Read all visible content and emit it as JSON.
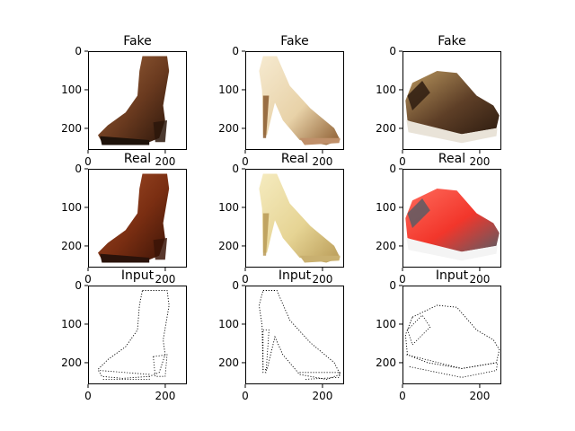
{
  "figure": {
    "rows": [
      {
        "row": "fake",
        "panels": [
          {
            "title": "Fake",
            "subject": "brown-ankle-boot",
            "colors": {
              "main": "#6a3a1f",
              "light": "#a0673d",
              "dark": "#2b160b",
              "sole": "#1e120a"
            }
          },
          {
            "title": "Fake",
            "subject": "cream-high-heel",
            "colors": {
              "main": "#e8d2a8",
              "light": "#f6ead0",
              "dark": "#8a5a2e",
              "sole": "#c0906a"
            }
          },
          {
            "title": "Fake",
            "subject": "brown-sneaker",
            "colors": {
              "main": "#5e3f27",
              "light": "#b8965e",
              "dark": "#2e1c10",
              "sole": "#e9e3d8"
            }
          }
        ]
      },
      {
        "row": "real",
        "panels": [
          {
            "title": "Real",
            "subject": "brown-ankle-boot",
            "colors": {
              "main": "#7a2e12",
              "light": "#a5502a",
              "dark": "#3b1407",
              "sole": "#2a120a"
            }
          },
          {
            "title": "Real",
            "subject": "gold-high-heel",
            "colors": {
              "main": "#e6d494",
              "light": "#f5ebbf",
              "dark": "#b89a56",
              "sole": "#c9b070"
            }
          },
          {
            "title": "Real",
            "subject": "red-sneaker",
            "colors": {
              "main": "#f2362b",
              "light": "#ff6b5c",
              "dark": "#5c5c64",
              "sole": "#f4f4f4"
            }
          }
        ]
      },
      {
        "row": "input",
        "panels": [
          {
            "title": "Input",
            "subject": "boot-edge-sketch",
            "colors": {
              "main": "#000000"
            }
          },
          {
            "title": "Input",
            "subject": "heel-edge-sketch",
            "colors": {
              "main": "#000000"
            }
          },
          {
            "title": "Input",
            "subject": "sneaker-edge-sketch",
            "colors": {
              "main": "#000000"
            }
          }
        ]
      }
    ],
    "axes": {
      "xlim": [
        0,
        256
      ],
      "ylim": [
        256,
        0
      ],
      "xticks": [
        0,
        200
      ],
      "yticks": [
        0,
        100,
        200
      ]
    }
  }
}
